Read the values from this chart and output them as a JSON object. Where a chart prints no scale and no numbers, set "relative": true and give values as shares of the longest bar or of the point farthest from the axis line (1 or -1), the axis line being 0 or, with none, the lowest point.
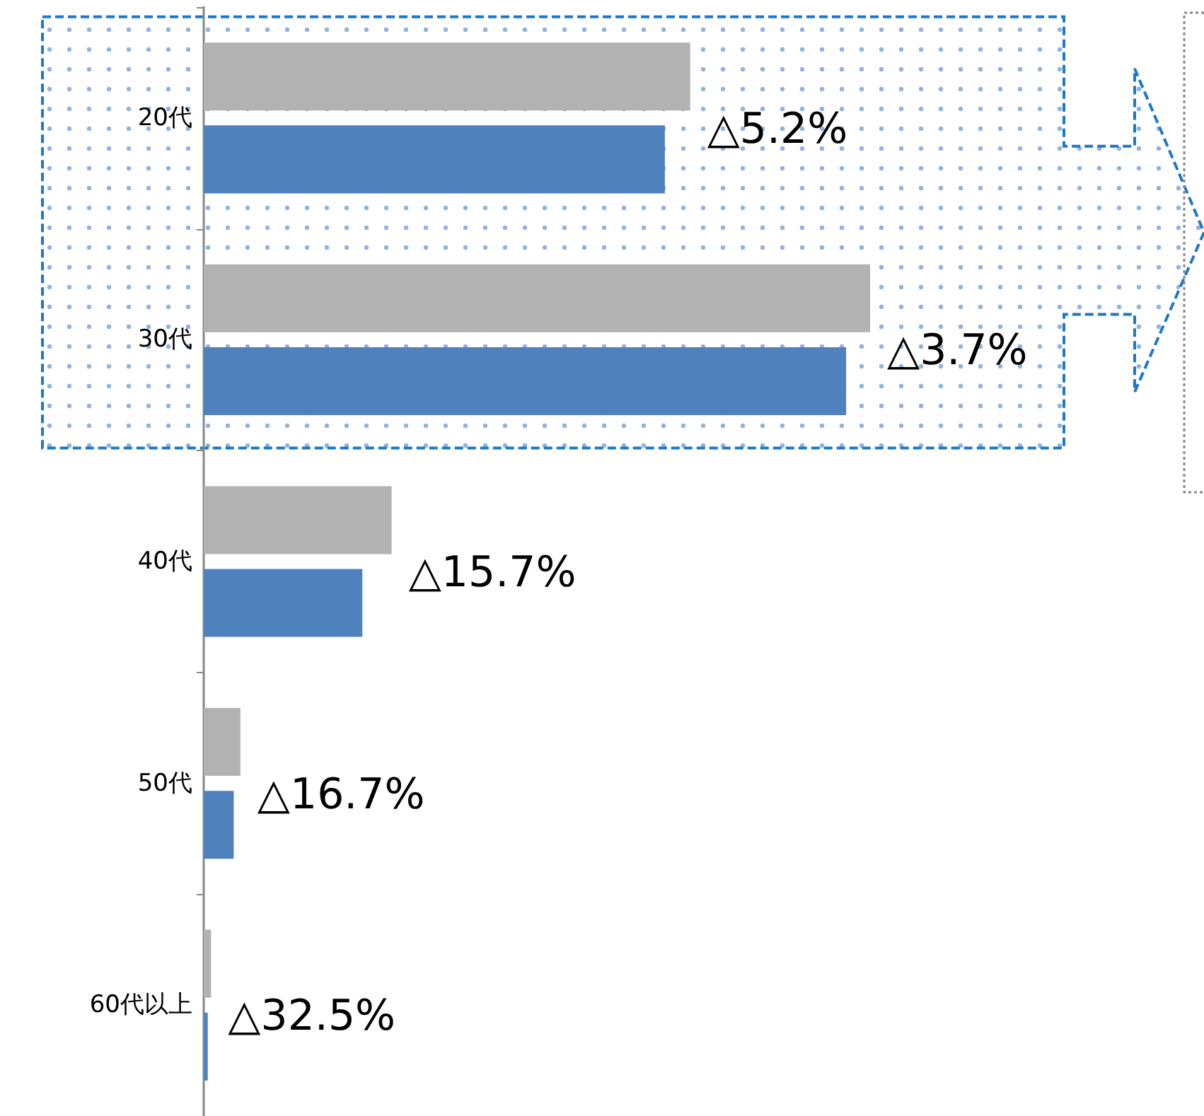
{
  "chart_data": {
    "type": "bar",
    "orientation": "horizontal",
    "relative": true,
    "categories": [
      "20代",
      "30代",
      "40代",
      "50代",
      "60代以上"
    ],
    "series": [
      {
        "color": "#b2b2b2",
        "values": [
          0.73,
          1,
          0.282,
          0.055,
          0.011
        ]
      },
      {
        "color": "#4f81bd",
        "values": [
          0.692,
          0.964,
          0.238,
          0.045,
          0.006
        ]
      }
    ],
    "bands": [
      {
        "axis": "y",
        "from": "20代",
        "to": "30代",
        "color": "#1f77c8"
      }
    ],
    "annotations": [
      "△5.2%",
      "△3.7%",
      "△15.7%",
      "△16.7%",
      "△32.5%"
    ]
  }
}
